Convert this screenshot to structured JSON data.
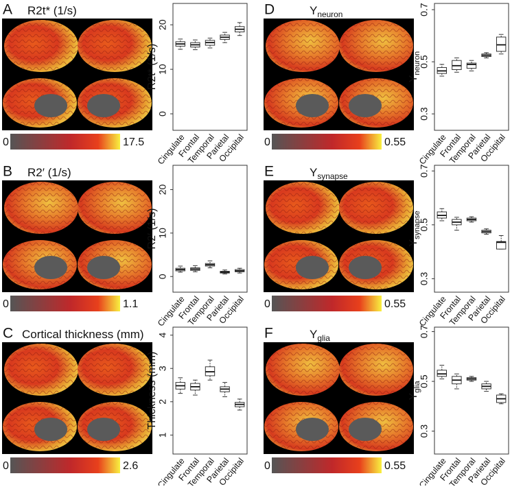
{
  "chart_data": [
    {
      "type": "box",
      "panel": "A",
      "title": "R2t* (1/s)",
      "colorbar": {
        "min": 0,
        "max": 17.5
      },
      "ylabel": "R2t* (1/s)",
      "categories": [
        "Cingulate",
        "Frontal",
        "Temporal",
        "Parietal",
        "Occipital"
      ],
      "boxes": [
        {
          "min": 14.5,
          "q1": 15.2,
          "median": 15.7,
          "q3": 16.2,
          "max": 16.8
        },
        {
          "min": 14.4,
          "q1": 15.0,
          "median": 15.5,
          "q3": 16.0,
          "max": 16.6
        },
        {
          "min": 14.8,
          "q1": 15.4,
          "median": 16.0,
          "q3": 16.5,
          "max": 17.0
        },
        {
          "min": 16.0,
          "q1": 16.7,
          "median": 17.2,
          "q3": 17.7,
          "max": 18.3
        },
        {
          "min": 17.6,
          "q1": 18.4,
          "median": 19.0,
          "q3": 19.6,
          "max": 20.5
        }
      ],
      "ylim": [
        -3.7,
        24.8
      ],
      "yticks": [
        0,
        10,
        20
      ]
    },
    {
      "type": "box",
      "panel": "B",
      "title": "R2′ (1/s)",
      "colorbar": {
        "min": 0,
        "max": 1.1
      },
      "ylabel": "R2′ (1/s)",
      "categories": [
        "Cingulate",
        "Frontal",
        "Temporal",
        "Parietal",
        "Occipital"
      ],
      "boxes": [
        {
          "min": 1.0,
          "q1": 1.3,
          "median": 1.6,
          "q3": 1.9,
          "max": 2.4
        },
        {
          "min": 1.1,
          "q1": 1.4,
          "median": 1.7,
          "q3": 2.0,
          "max": 2.5
        },
        {
          "min": 2.0,
          "q1": 2.4,
          "median": 2.7,
          "q3": 3.0,
          "max": 3.6
        },
        {
          "min": 0.6,
          "q1": 0.8,
          "median": 1.0,
          "q3": 1.2,
          "max": 1.5
        },
        {
          "min": 0.8,
          "q1": 1.1,
          "median": 1.3,
          "q3": 1.6,
          "max": 1.9
        }
      ],
      "ylim": [
        -3.6,
        25.6
      ],
      "yticks": [
        0,
        10,
        20
      ]
    },
    {
      "type": "box",
      "panel": "C",
      "title": "Cortical thickness (mm)",
      "colorbar": {
        "min": 0,
        "max": 2.6
      },
      "ylabel": "Thickness (mm)",
      "categories": [
        "Cingulate",
        "Frontal",
        "Temporal",
        "Parietal",
        "Occipital"
      ],
      "boxes": [
        {
          "min": 2.25,
          "q1": 2.38,
          "median": 2.48,
          "q3": 2.58,
          "max": 2.72
        },
        {
          "min": 2.2,
          "q1": 2.35,
          "median": 2.45,
          "q3": 2.55,
          "max": 2.65
        },
        {
          "min": 2.65,
          "q1": 2.78,
          "median": 2.9,
          "q3": 3.05,
          "max": 3.25
        },
        {
          "min": 2.15,
          "q1": 2.3,
          "median": 2.38,
          "q3": 2.45,
          "max": 2.58
        },
        {
          "min": 1.75,
          "q1": 1.85,
          "median": 1.92,
          "q3": 1.98,
          "max": 2.08
        }
      ],
      "ylim": [
        0.43,
        4.24
      ],
      "yticks": [
        1,
        2,
        3,
        4
      ]
    },
    {
      "type": "box",
      "panel": "D",
      "title": "Y",
      "title_sub": "neuron",
      "colorbar": {
        "min": 0,
        "max": 0.55
      },
      "ylabel": "Y",
      "ylabel_sub": "neuron",
      "categories": [
        "Cingulate",
        "Frontal",
        "Temporal",
        "Parietal",
        "Occipital"
      ],
      "boxes": [
        {
          "min": 0.445,
          "q1": 0.455,
          "median": 0.465,
          "q3": 0.478,
          "max": 0.49
        },
        {
          "min": 0.46,
          "q1": 0.47,
          "median": 0.485,
          "q3": 0.505,
          "max": 0.515
        },
        {
          "min": 0.465,
          "q1": 0.475,
          "median": 0.49,
          "q3": 0.495,
          "max": 0.505
        },
        {
          "min": 0.515,
          "q1": 0.52,
          "median": 0.525,
          "q3": 0.53,
          "max": 0.535
        },
        {
          "min": 0.53,
          "q1": 0.54,
          "median": 0.565,
          "q3": 0.595,
          "max": 0.605
        }
      ],
      "ylim": [
        0.237,
        0.724
      ],
      "yticks": [
        0.3,
        0.5,
        0.7
      ]
    },
    {
      "type": "box",
      "panel": "E",
      "title": "Y",
      "title_sub": "synapse",
      "colorbar": {
        "min": 0,
        "max": 0.55
      },
      "ylabel": "Y",
      "ylabel_sub": "synapse",
      "categories": [
        "Cingulate",
        "Frontal",
        "Temporal",
        "Parietal",
        "Occipital"
      ],
      "boxes": [
        {
          "min": 0.515,
          "q1": 0.525,
          "median": 0.535,
          "q3": 0.548,
          "max": 0.56
        },
        {
          "min": 0.48,
          "q1": 0.5,
          "median": 0.51,
          "q3": 0.52,
          "max": 0.528
        },
        {
          "min": 0.51,
          "q1": 0.515,
          "median": 0.52,
          "q3": 0.525,
          "max": 0.53
        },
        {
          "min": 0.465,
          "q1": 0.47,
          "median": 0.475,
          "q3": 0.48,
          "max": 0.485
        },
        {
          "min": 0.41,
          "q1": 0.41,
          "median": 0.435,
          "q3": 0.438,
          "max": 0.46
        }
      ],
      "ylim": [
        0.25,
        0.721
      ],
      "yticks": [
        0.3,
        0.5,
        0.7
      ]
    },
    {
      "type": "box",
      "panel": "F",
      "title": "Y",
      "title_sub": "glia",
      "colorbar": {
        "min": 0,
        "max": 0.55
      },
      "ylabel": "Y",
      "ylabel_sub": "glia",
      "categories": [
        "Cingulate",
        "Frontal",
        "Temporal",
        "Parietal",
        "Occipital"
      ],
      "boxes": [
        {
          "min": 0.51,
          "q1": 0.52,
          "median": 0.53,
          "q3": 0.545,
          "max": 0.565
        },
        {
          "min": 0.47,
          "q1": 0.49,
          "median": 0.505,
          "q3": 0.52,
          "max": 0.53
        },
        {
          "min": 0.5,
          "q1": 0.505,
          "median": 0.51,
          "q3": 0.515,
          "max": 0.52
        },
        {
          "min": 0.46,
          "q1": 0.47,
          "median": 0.48,
          "q3": 0.49,
          "max": 0.5
        },
        {
          "min": 0.41,
          "q1": 0.415,
          "median": 0.43,
          "q3": 0.445,
          "max": 0.45
        }
      ],
      "ylim": [
        0.208,
        0.718
      ],
      "yticks": [
        0.3,
        0.5,
        0.7
      ]
    }
  ]
}
